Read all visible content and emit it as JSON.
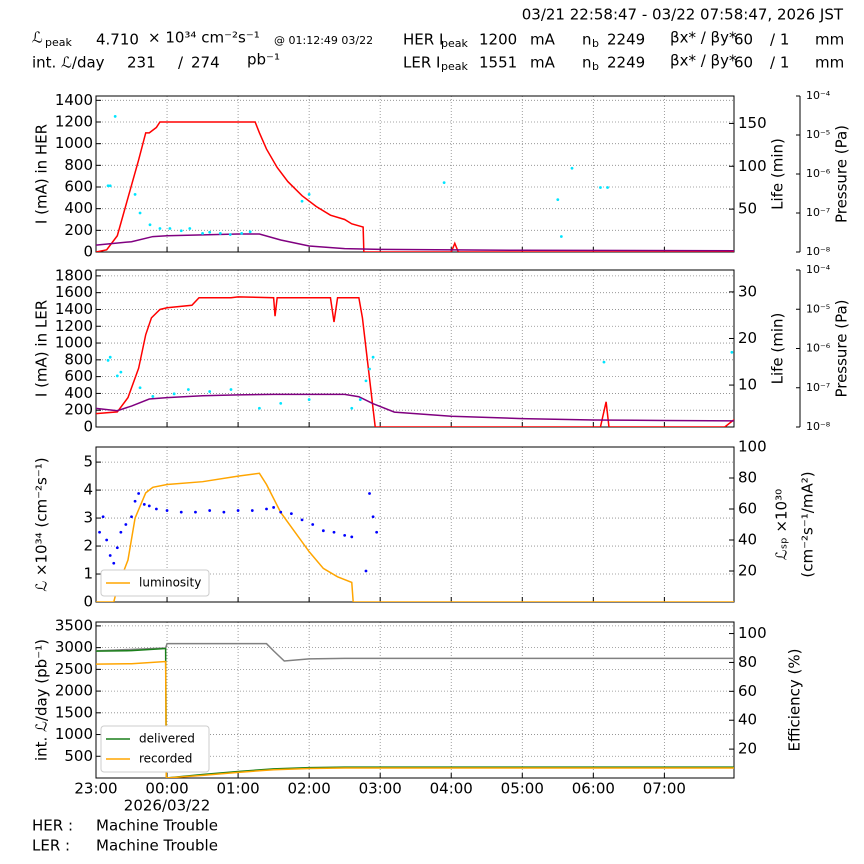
{
  "header": {
    "time_range": "03/21 22:58:47 - 03/22 07:58:47, 2026 JST",
    "lumi_peak": {
      "symbol": "ℒ",
      "sub": "peak",
      "value": "4.710",
      "unit": "× 10³⁴ cm⁻²s⁻¹",
      "time": "@ 01:12:49 03/22"
    },
    "int_lumi": {
      "label": "int. ℒ/day",
      "value": "231",
      "sep": "/",
      "total": "274",
      "unit": "pb⁻¹"
    },
    "rings": [
      {
        "label": "HER I",
        "sub": "peak",
        "current": "1200",
        "unit": "mA",
        "nb_symbol": "n",
        "nb_sub": "b",
        "nb": "2249",
        "beta_label": "βx* / βy*",
        "beta_x": "60",
        "beta_y": "/ 1",
        "beta_unit": "mm"
      },
      {
        "label": "LER I",
        "sub": "peak",
        "current": "1551",
        "unit": "mA",
        "nb_symbol": "n",
        "nb_sub": "b",
        "nb": "2249",
        "beta_label": "βx* / βy*",
        "beta_x": "60",
        "beta_y": "/ 1",
        "beta_unit": "mm"
      }
    ]
  },
  "footer": [
    {
      "ring": "HER :",
      "status": "Machine Trouble"
    },
    {
      "ring": "LER :",
      "status": "Machine Trouble"
    }
  ],
  "chart_data": [
    {
      "type": "line",
      "ylabel": "I (mA) in HER",
      "y2label": "Life (min)",
      "y3label": "Pressure (Pa)",
      "grid": true,
      "xlim": [
        0,
        8.98
      ],
      "xticks": [
        0,
        1,
        2,
        3,
        4,
        5,
        6,
        7,
        8
      ],
      "ylim": [
        0,
        1440
      ],
      "yticks": [
        0,
        200,
        400,
        600,
        800,
        1000,
        1200,
        1400
      ],
      "y2lim": [
        0,
        182
      ],
      "y2ticks": [
        50,
        100,
        150
      ],
      "y3lim": [
        1e-08,
        0.0001
      ],
      "y3log": true,
      "y3ticks": [
        {
          "value": 1e-08,
          "label": "10⁻⁸"
        },
        {
          "value": 1e-07,
          "label": "10⁻⁷"
        },
        {
          "value": 1e-06,
          "label": "10⁻⁶"
        },
        {
          "value": 1e-05,
          "label": "10⁻⁵"
        },
        {
          "value": 0.0001,
          "label": "10⁻⁴"
        }
      ],
      "series": [
        {
          "color": "#ff0000",
          "x": [
            0,
            0.15,
            0.3,
            0.45,
            0.6,
            0.7,
            0.75,
            0.85,
            0.9,
            2.24,
            2.3,
            2.4,
            2.55,
            2.7,
            2.9,
            3.1,
            3.3,
            3.5,
            3.6,
            3.76,
            3.77,
            5.0,
            5.05,
            5.1,
            9.0
          ],
          "values": [
            0,
            20,
            150,
            500,
            850,
            1100,
            1100,
            1150,
            1200,
            1200,
            1100,
            950,
            780,
            650,
            520,
            420,
            340,
            300,
            260,
            230,
            0,
            0,
            80,
            0,
            0
          ]
        },
        {
          "color": "#800080",
          "axis": "y2",
          "x": [
            0,
            0.5,
            0.8,
            1.0,
            1.5,
            2.0,
            2.3,
            2.6,
            3.0,
            3.5,
            4.0,
            6.0,
            9.0
          ],
          "values": [
            8,
            12,
            18,
            19,
            20,
            21,
            21,
            14,
            7,
            4,
            3,
            2,
            1.5
          ]
        },
        {
          "color": "#00e5ff",
          "axis": "y3",
          "style": "points",
          "x": [
            0.17,
            0.2,
            0.27,
            0.55,
            0.62,
            0.76,
            0.9,
            1.04,
            1.2,
            1.32,
            1.5,
            1.6,
            1.75,
            1.89,
            2.05,
            2.17,
            2.9,
            3.0,
            4.9,
            6.5,
            6.55,
            6.7,
            7.1,
            7.2
          ],
          "values": [
            5e-07,
            5e-07,
            3e-05,
            3e-07,
            1e-07,
            5e-08,
            4e-08,
            4e-08,
            3.5e-08,
            4e-08,
            3e-08,
            3.2e-08,
            3e-08,
            2.8e-08,
            3e-08,
            3.3e-08,
            2e-07,
            3e-07,
            6e-07,
            2.2e-07,
            2.5e-08,
            1.4e-06,
            4.5e-07,
            4.5e-07
          ]
        }
      ]
    },
    {
      "type": "line",
      "ylabel": "I (mA) in LER",
      "y2label": "Life (min)",
      "y3label": "Pressure (Pa)",
      "grid": true,
      "xlim": [
        0,
        8.98
      ],
      "xticks": [
        0,
        1,
        2,
        3,
        4,
        5,
        6,
        7,
        8
      ],
      "ylim": [
        0,
        1870
      ],
      "yticks": [
        0,
        200,
        400,
        600,
        800,
        1000,
        1200,
        1400,
        1600,
        1800
      ],
      "y2lim": [
        1,
        34.7
      ],
      "y2ticks": [
        10,
        20,
        30
      ],
      "y3lim": [
        1e-08,
        0.0001
      ],
      "y3log": true,
      "y3ticks": [
        {
          "value": 1e-08,
          "label": "10⁻⁸"
        },
        {
          "value": 1e-07,
          "label": "10⁻⁷"
        },
        {
          "value": 1e-06,
          "label": "10⁻⁶"
        },
        {
          "value": 1e-05,
          "label": "10⁻⁵"
        },
        {
          "value": 0.0001,
          "label": "10⁻⁴"
        }
      ],
      "series": [
        {
          "color": "#ff0000",
          "x": [
            0,
            0.3,
            0.45,
            0.6,
            0.7,
            0.78,
            0.9,
            1.0,
            1.35,
            1.45,
            1.9,
            2.0,
            2.5,
            2.52,
            2.55,
            3.3,
            3.35,
            3.4,
            3.7,
            3.75,
            3.93,
            7.1,
            7.18,
            7.22,
            8.85,
            9.0
          ],
          "values": [
            160,
            180,
            350,
            700,
            1100,
            1300,
            1400,
            1420,
            1450,
            1540,
            1540,
            1550,
            1540,
            1320,
            1540,
            1540,
            1250,
            1540,
            1540,
            1300,
            0,
            0,
            300,
            0,
            0,
            100
          ]
        },
        {
          "color": "#800080",
          "axis": "y2",
          "x": [
            0,
            0.3,
            0.5,
            0.75,
            1.0,
            1.5,
            2.0,
            2.5,
            3.0,
            3.5,
            3.7,
            3.9,
            4.2,
            5,
            6,
            7,
            8,
            9
          ],
          "values": [
            5,
            4.5,
            5.5,
            7,
            7.3,
            7.7,
            7.9,
            8,
            8,
            8,
            7.5,
            6,
            4.2,
            3.3,
            2.8,
            2.5,
            2.4,
            2.3
          ]
        },
        {
          "color": "#00e5ff",
          "axis": "y3",
          "style": "points",
          "x": [
            0.17,
            0.2,
            0.3,
            0.35,
            0.62,
            0.8,
            1.1,
            1.3,
            1.6,
            1.9,
            2.3,
            2.6,
            3.0,
            3.6,
            3.72,
            3.8,
            3.85,
            3.9,
            7.15,
            8.95,
            9.0
          ],
          "values": [
            5e-07,
            6e-07,
            2e-07,
            2.5e-07,
            1e-07,
            6e-08,
            7e-08,
            9e-08,
            8e-08,
            9e-08,
            3e-08,
            4e-08,
            5e-08,
            3e-08,
            5e-08,
            1.5e-07,
            3e-07,
            6e-07,
            4.5e-07,
            8e-07,
            1e-06
          ]
        }
      ]
    },
    {
      "type": "line",
      "ylabel": "ℒ ×10³⁴ (cm⁻²s⁻¹)",
      "y2label": "ℒₛₚ ×10³⁰",
      "y2label2": "(cm⁻²s⁻¹/mA²)",
      "grid": true,
      "legend": "lower left",
      "xlim": [
        0,
        8.98
      ],
      "xticks": [
        0,
        1,
        2,
        3,
        4,
        5,
        6,
        7,
        8
      ],
      "ylim": [
        0,
        5.54
      ],
      "yticks": [
        0,
        1,
        2,
        3,
        4,
        5
      ],
      "y2lim": [
        0,
        100
      ],
      "y2ticks": [
        20,
        40,
        60,
        80,
        100
      ],
      "series": [
        {
          "name": "luminosity",
          "color": "#ffa500",
          "x": [
            0,
            0.25,
            0.3,
            0.45,
            0.55,
            0.7,
            0.8,
            1.0,
            1.5,
            2.0,
            2.3,
            2.4,
            2.6,
            2.8,
            3.0,
            3.2,
            3.4,
            3.6,
            3.62,
            9.0
          ],
          "values": [
            0,
            0,
            0.5,
            1.5,
            3.0,
            3.9,
            4.1,
            4.2,
            4.3,
            4.5,
            4.6,
            4.2,
            3.2,
            2.5,
            1.8,
            1.2,
            0.9,
            0.7,
            0,
            0
          ]
        },
        {
          "color": "#0000ff",
          "axis": "y2",
          "style": "points",
          "x": [
            0.05,
            0.1,
            0.15,
            0.2,
            0.25,
            0.3,
            0.35,
            0.42,
            0.5,
            0.55,
            0.6,
            0.68,
            0.75,
            0.85,
            1.0,
            1.2,
            1.4,
            1.6,
            1.8,
            2.0,
            2.2,
            2.4,
            2.5,
            2.6,
            2.75,
            2.9,
            3.05,
            3.2,
            3.35,
            3.5,
            3.6,
            3.8,
            3.85,
            3.9,
            3.95
          ],
          "values": [
            45,
            55,
            40,
            30,
            25,
            35,
            45,
            50,
            55,
            65,
            70,
            63,
            62,
            60,
            59,
            58,
            58,
            59,
            58,
            59,
            59,
            60,
            61,
            58,
            57,
            53,
            50,
            46,
            45,
            43,
            42,
            20,
            70,
            55,
            45
          ]
        }
      ]
    },
    {
      "type": "line",
      "ylabel": "int. ℒ/day (pb⁻¹)",
      "y2label": "Efficiency (%)",
      "grid": true,
      "legend": "lower left",
      "xlim": [
        0,
        8.98
      ],
      "xticks": [
        {
          "value": 0,
          "label": "23:00"
        },
        {
          "value": 1,
          "label": "00:00"
        },
        {
          "value": 2,
          "label": "01:00"
        },
        {
          "value": 3,
          "label": "02:00"
        },
        {
          "value": 4,
          "label": "03:00"
        },
        {
          "value": 5,
          "label": "04:00"
        },
        {
          "value": 6,
          "label": "05:00"
        },
        {
          "value": 7,
          "label": "06:00"
        },
        {
          "value": 8,
          "label": "07:00"
        }
      ],
      "date_label": "2026/03/22",
      "ylim": [
        0,
        3590
      ],
      "yticks": [
        500,
        1000,
        1500,
        2000,
        2500,
        3000,
        3500
      ],
      "y2lim": [
        0,
        108
      ],
      "y2ticks": [
        20,
        40,
        60,
        80,
        100
      ],
      "series": [
        {
          "color": "#808080",
          "axis": "y2",
          "x": [
            0,
            0.98,
            1.0,
            1.2,
            2.4,
            2.5,
            2.65,
            3.0,
            3.5,
            9.0
          ],
          "values": [
            88,
            90,
            93,
            93,
            93,
            88,
            81,
            82.5,
            82.8,
            82.8
          ]
        },
        {
          "name": "delivered",
          "color": "#1a7f1a",
          "x": [
            0,
            0.5,
            0.98,
            0.99,
            1.5,
            2.0,
            2.5,
            3.0,
            3.5,
            9.0
          ],
          "values": [
            2920,
            2930,
            2980,
            0,
            80,
            150,
            210,
            240,
            250,
            250
          ]
        },
        {
          "name": "recorded",
          "color": "#ffa500",
          "x": [
            0,
            0.5,
            0.98,
            0.99,
            1.5,
            2.0,
            2.5,
            3.0,
            3.5,
            9.0
          ],
          "values": [
            2620,
            2630,
            2680,
            0,
            60,
            130,
            190,
            220,
            230,
            230
          ]
        }
      ]
    }
  ]
}
